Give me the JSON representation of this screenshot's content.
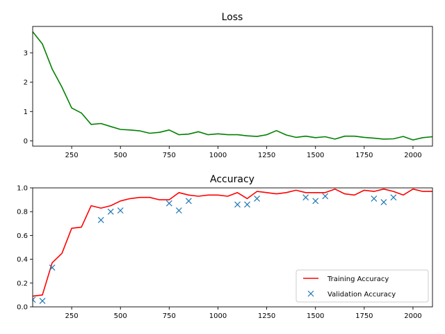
{
  "colors": {
    "loss_line": "#008000",
    "train_line": "#ff0000",
    "val_marker": "#1f77b4"
  },
  "chart_data": [
    {
      "type": "line",
      "title": "Loss",
      "xlabel": "",
      "ylabel": "",
      "xlim": [
        50,
        2100
      ],
      "ylim": [
        -0.18,
        3.9
      ],
      "xticks": [
        250,
        500,
        750,
        1000,
        1250,
        1500,
        1750,
        2000
      ],
      "yticks": [
        0,
        1,
        2,
        3
      ],
      "grid": false,
      "series": [
        {
          "x": [
            50,
            100,
            150,
            200,
            250,
            300,
            350,
            400,
            450,
            500,
            550,
            600,
            650,
            700,
            750,
            800,
            850,
            900,
            950,
            1000,
            1050,
            1100,
            1150,
            1200,
            1250,
            1300,
            1350,
            1400,
            1450,
            1500,
            1550,
            1600,
            1650,
            1700,
            1750,
            1800,
            1850,
            1900,
            1950,
            2000,
            2050,
            2100
          ],
          "values": [
            3.72,
            3.3,
            2.45,
            1.83,
            1.12,
            0.95,
            0.56,
            0.59,
            0.49,
            0.39,
            0.37,
            0.34,
            0.26,
            0.29,
            0.37,
            0.21,
            0.23,
            0.31,
            0.21,
            0.24,
            0.21,
            0.21,
            0.17,
            0.15,
            0.21,
            0.35,
            0.2,
            0.12,
            0.16,
            0.11,
            0.14,
            0.06,
            0.16,
            0.16,
            0.12,
            0.09,
            0.06,
            0.07,
            0.15,
            0.03,
            0.11,
            0.14
          ]
        }
      ]
    },
    {
      "type": "line",
      "title": "Accuracy",
      "xlabel": "",
      "ylabel": "",
      "xlim": [
        50,
        2100
      ],
      "ylim": [
        0,
        1.0
      ],
      "xticks": [
        250,
        500,
        750,
        1000,
        1250,
        1500,
        1750,
        2000
      ],
      "yticks": [
        0.0,
        0.2,
        0.4,
        0.6,
        0.8,
        1.0
      ],
      "ytick_labels": [
        "0.0",
        "0.2",
        "0.4",
        "0.6",
        "0.8",
        "1.0"
      ],
      "grid": false,
      "legend": "lower-right",
      "series": [
        {
          "name": "Training Accuracy",
          "style": "line",
          "x": [
            50,
            100,
            150,
            200,
            250,
            300,
            350,
            400,
            450,
            500,
            550,
            600,
            650,
            700,
            750,
            800,
            850,
            900,
            950,
            1000,
            1050,
            1100,
            1150,
            1200,
            1250,
            1300,
            1350,
            1400,
            1450,
            1500,
            1550,
            1600,
            1650,
            1700,
            1750,
            1800,
            1850,
            1900,
            1950,
            2000,
            2050,
            2100
          ],
          "values": [
            0.09,
            0.1,
            0.37,
            0.45,
            0.66,
            0.67,
            0.85,
            0.83,
            0.85,
            0.89,
            0.91,
            0.92,
            0.92,
            0.9,
            0.9,
            0.96,
            0.94,
            0.93,
            0.94,
            0.94,
            0.93,
            0.96,
            0.91,
            0.97,
            0.96,
            0.95,
            0.96,
            0.98,
            0.96,
            0.96,
            0.96,
            0.99,
            0.95,
            0.94,
            0.98,
            0.97,
            0.99,
            0.97,
            0.94,
            0.99,
            0.97,
            0.97
          ]
        },
        {
          "name": "Validation Accuracy",
          "style": "marker-x",
          "x": [
            50,
            100,
            150,
            400,
            450,
            500,
            750,
            800,
            850,
            1100,
            1150,
            1200,
            1450,
            1500,
            1550,
            1800,
            1850,
            1900
          ],
          "values": [
            0.06,
            0.05,
            0.33,
            0.73,
            0.8,
            0.81,
            0.87,
            0.81,
            0.89,
            0.86,
            0.86,
            0.91,
            0.92,
            0.89,
            0.93,
            0.91,
            0.88,
            0.92
          ]
        }
      ]
    }
  ]
}
